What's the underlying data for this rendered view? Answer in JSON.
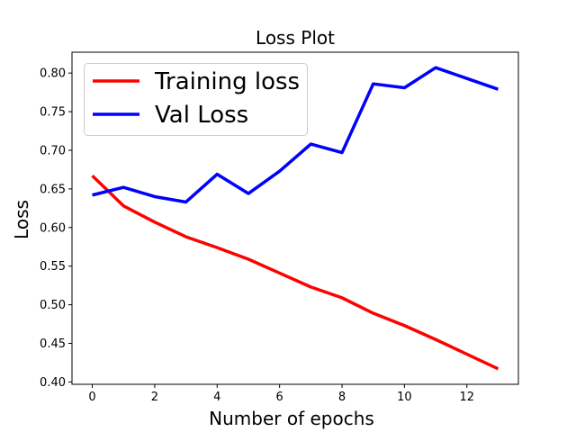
{
  "chart_data": {
    "type": "line",
    "title": "Loss Plot",
    "xlabel": "Number of epochs",
    "ylabel": "Loss",
    "x": [
      0,
      1,
      2,
      3,
      4,
      5,
      6,
      7,
      8,
      9,
      10,
      11,
      12,
      13
    ],
    "xlim": [
      -0.65,
      13.65
    ],
    "ylim": [
      0.397,
      0.827
    ],
    "xticks": [
      0,
      2,
      4,
      6,
      8,
      10,
      12
    ],
    "xtick_labels": [
      "0",
      "2",
      "4",
      "6",
      "8",
      "10",
      "12"
    ],
    "yticks": [
      0.4,
      0.45,
      0.5,
      0.55,
      0.6,
      0.65,
      0.7,
      0.75,
      0.8
    ],
    "ytick_labels": [
      "0.40",
      "0.45",
      "0.50",
      "0.55",
      "0.60",
      "0.65",
      "0.70",
      "0.75",
      "0.80"
    ],
    "grid": false,
    "legend_position": "upper left",
    "series": [
      {
        "name": "Training loss",
        "color": "#ff0000",
        "values": [
          0.667,
          0.628,
          0.607,
          0.588,
          0.574,
          0.559,
          0.541,
          0.523,
          0.509,
          0.489,
          0.473,
          0.455,
          0.436,
          0.417
        ]
      },
      {
        "name": "Val Loss",
        "color": "#0000ff",
        "values": [
          0.642,
          0.652,
          0.64,
          0.633,
          0.669,
          0.644,
          0.673,
          0.708,
          0.697,
          0.786,
          0.781,
          0.807,
          0.793,
          0.779
        ]
      }
    ]
  }
}
